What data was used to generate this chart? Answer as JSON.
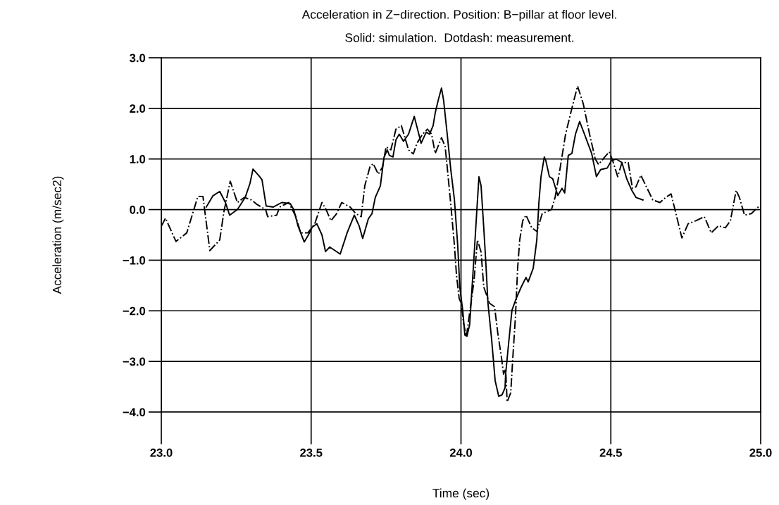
{
  "chart_data": {
    "type": "line",
    "title": "Acceleration in Z−direction. Position: B−pillar at floor level.",
    "subtitle": "Solid: simulation.  Dotdash: measurement.",
    "xlabel": "Time (sec)",
    "ylabel": "Acceleration (m/sec2)",
    "xlim": [
      23.0,
      25.0
    ],
    "xticks": [
      {
        "value": 23.0,
        "label": "23.0"
      },
      {
        "value": 23.5,
        "label": "23.5"
      },
      {
        "value": 24.0,
        "label": "24.0"
      },
      {
        "value": 24.5,
        "label": "24.5"
      },
      {
        "value": 25.0,
        "label": "25.0"
      }
    ],
    "ylim": [
      -4.0,
      3.0
    ],
    "yticks": [
      {
        "value": -4.0,
        "label": "−4.0"
      },
      {
        "value": -3.0,
        "label": "−3.0"
      },
      {
        "value": -2.0,
        "label": "−2.0"
      },
      {
        "value": -1.0,
        "label": "−1.0"
      },
      {
        "value": 0.0,
        "label": "0.0"
      },
      {
        "value": 1.0,
        "label": "1.0"
      },
      {
        "value": 2.0,
        "label": "2.0"
      },
      {
        "value": 3.0,
        "label": "3.0"
      }
    ],
    "grid": true,
    "marker": "none",
    "series": [
      {
        "color": "#000000",
        "line_style": "solid",
        "x": [
          23.15,
          23.172,
          23.195,
          23.214,
          23.228,
          23.254,
          23.28,
          23.296,
          23.306,
          23.324,
          23.336,
          23.35,
          23.374,
          23.402,
          23.43,
          23.442,
          23.456,
          23.477,
          23.491,
          23.503,
          23.519,
          23.536,
          23.548,
          23.562,
          23.597,
          23.62,
          23.644,
          23.66,
          23.672,
          23.691,
          23.703,
          23.714,
          23.731,
          23.743,
          23.754,
          23.761,
          23.773,
          23.783,
          23.794,
          23.808,
          23.825,
          23.844,
          23.855,
          23.867,
          23.884,
          23.895,
          23.907,
          23.914,
          23.924,
          23.935,
          23.942,
          23.954,
          23.966,
          23.978,
          23.989,
          23.996,
          24.006,
          24.013,
          24.02,
          24.029,
          24.036,
          24.043,
          24.053,
          24.06,
          24.067,
          24.076,
          24.083,
          24.09,
          24.102,
          24.114,
          24.126,
          24.137,
          24.147,
          24.149,
          24.159,
          24.17,
          24.184,
          24.201,
          24.217,
          24.224,
          24.241,
          24.253,
          24.26,
          24.267,
          24.278,
          24.283,
          24.295,
          24.306,
          24.323,
          24.337,
          24.346,
          24.358,
          24.37,
          24.382,
          24.396,
          24.412,
          24.436,
          24.452,
          24.466,
          24.488,
          24.502,
          24.518,
          24.537,
          24.553,
          24.57,
          24.584,
          24.607
        ],
        "values": [
          0.05,
          0.27,
          0.36,
          0.14,
          -0.11,
          0.0,
          0.24,
          0.52,
          0.8,
          0.68,
          0.59,
          0.07,
          0.05,
          0.14,
          0.12,
          0.0,
          -0.32,
          -0.64,
          -0.5,
          -0.35,
          -0.28,
          -0.5,
          -0.83,
          -0.74,
          -0.88,
          -0.46,
          -0.11,
          -0.32,
          -0.57,
          -0.18,
          -0.08,
          0.24,
          0.47,
          1.03,
          1.18,
          1.07,
          1.04,
          1.38,
          1.49,
          1.35,
          1.49,
          1.84,
          1.59,
          1.31,
          1.53,
          1.49,
          1.66,
          1.91,
          2.16,
          2.4,
          2.16,
          1.49,
          0.79,
          0.2,
          -0.7,
          -1.53,
          -2.0,
          -2.48,
          -2.5,
          -2.27,
          -1.62,
          -0.98,
          0.0,
          0.65,
          0.47,
          -0.36,
          -1.06,
          -1.85,
          -2.55,
          -3.38,
          -3.69,
          -3.66,
          -3.52,
          -3.25,
          -2.64,
          -1.99,
          -1.76,
          -1.53,
          -1.34,
          -1.43,
          -1.16,
          -0.6,
          0.14,
          0.65,
          1.04,
          0.97,
          0.65,
          0.61,
          0.28,
          0.42,
          0.33,
          1.07,
          1.11,
          1.49,
          1.74,
          1.49,
          1.11,
          0.65,
          0.79,
          0.82,
          0.97,
          1.0,
          0.93,
          0.61,
          0.38,
          0.24,
          0.19
        ]
      },
      {
        "color": "#000000",
        "line_style": "dashdot",
        "x": [
          23.0,
          23.014,
          23.049,
          23.085,
          23.122,
          23.139,
          23.162,
          23.195,
          23.209,
          23.23,
          23.254,
          23.277,
          23.301,
          23.32,
          23.348,
          23.355,
          23.385,
          23.395,
          23.425,
          23.449,
          23.465,
          23.489,
          23.512,
          23.536,
          23.55,
          23.566,
          23.585,
          23.602,
          23.63,
          23.649,
          23.667,
          23.679,
          23.696,
          23.707,
          23.724,
          23.738,
          23.75,
          23.766,
          23.783,
          23.801,
          23.825,
          23.841,
          23.853,
          23.872,
          23.888,
          23.902,
          23.914,
          23.935,
          23.947,
          23.954,
          23.966,
          23.978,
          23.985,
          23.994,
          24.001,
          24.008,
          24.018,
          24.043,
          24.055,
          24.067,
          24.076,
          24.095,
          24.112,
          24.123,
          24.135,
          24.142,
          24.149,
          24.154,
          24.166,
          24.173,
          24.182,
          24.189,
          24.196,
          24.206,
          24.217,
          24.236,
          24.253,
          24.271,
          24.302,
          24.314,
          24.33,
          24.349,
          24.372,
          24.389,
          24.408,
          24.429,
          24.448,
          24.459,
          24.478,
          24.495,
          24.506,
          24.523,
          24.537,
          24.558,
          24.572,
          24.584,
          24.6,
          24.617,
          24.64,
          24.664,
          24.683,
          24.701,
          24.723,
          24.737,
          24.758,
          24.784,
          24.812,
          24.835,
          24.859,
          24.882,
          24.899,
          24.918,
          24.929,
          24.946,
          24.969,
          24.995
        ],
        "values": [
          -0.33,
          -0.17,
          -0.63,
          -0.46,
          0.26,
          0.26,
          -0.81,
          -0.6,
          -0.04,
          0.56,
          0.14,
          0.24,
          0.19,
          0.1,
          0.0,
          -0.14,
          -0.11,
          0.05,
          0.14,
          -0.14,
          -0.46,
          -0.46,
          -0.28,
          0.14,
          0.0,
          -0.22,
          -0.08,
          0.14,
          0.05,
          -0.08,
          -0.14,
          0.47,
          0.84,
          0.91,
          0.7,
          0.84,
          1.24,
          1.18,
          1.59,
          1.66,
          1.18,
          1.1,
          1.31,
          1.49,
          1.59,
          1.49,
          1.11,
          1.42,
          1.25,
          0.84,
          0.1,
          -0.7,
          -1.3,
          -1.76,
          -1.85,
          -2.23,
          -2.51,
          -1.43,
          -0.6,
          -0.84,
          -1.53,
          -1.85,
          -1.92,
          -2.45,
          -2.92,
          -3.25,
          -3.15,
          -3.8,
          -3.62,
          -2.92,
          -2.09,
          -1.16,
          -0.6,
          -0.22,
          -0.11,
          -0.36,
          -0.43,
          -0.08,
          0.0,
          0.24,
          0.79,
          1.49,
          2.05,
          2.44,
          2.09,
          1.49,
          1.0,
          0.89,
          1.03,
          1.14,
          0.97,
          0.65,
          0.93,
          0.93,
          0.42,
          0.45,
          0.68,
          0.47,
          0.19,
          0.14,
          0.24,
          0.31,
          -0.22,
          -0.56,
          -0.28,
          -0.22,
          -0.14,
          -0.46,
          -0.32,
          -0.36,
          -0.22,
          0.38,
          0.24,
          -0.11,
          -0.08,
          0.07
        ]
      }
    ]
  }
}
